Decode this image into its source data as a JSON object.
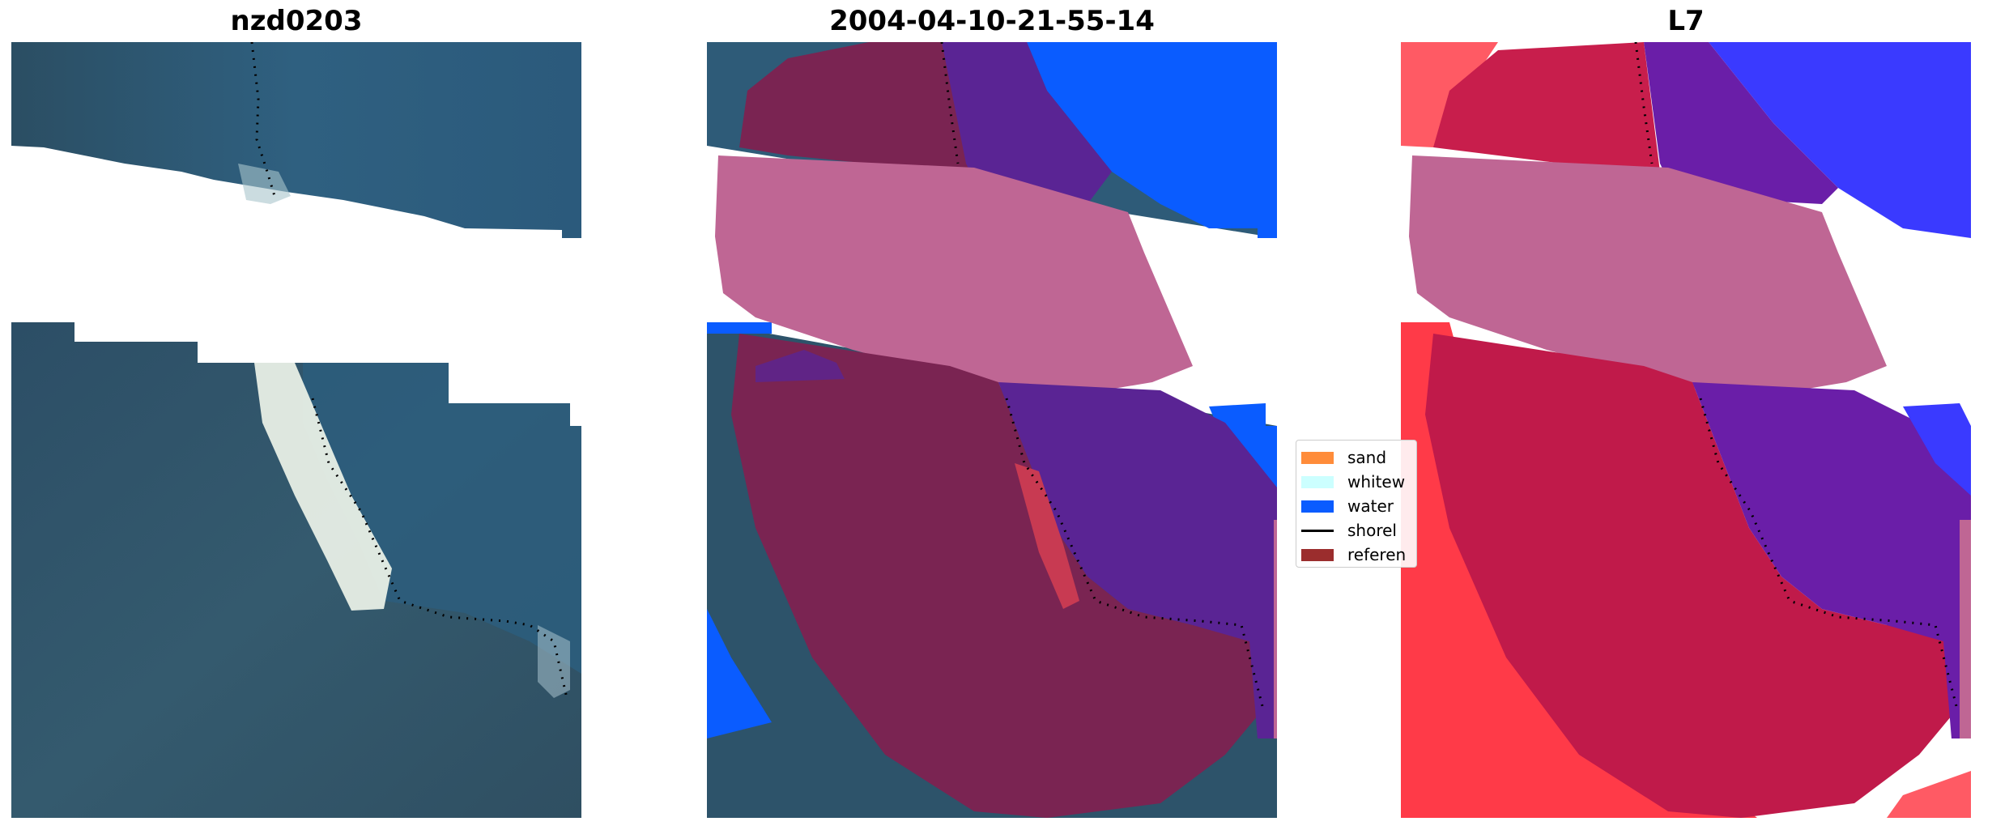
{
  "panels": [
    {
      "title": "nzd0203"
    },
    {
      "title": "2004-04-10-21-55-14"
    },
    {
      "title": "L7"
    }
  ],
  "legend": {
    "items": [
      {
        "label": "sand",
        "color": "#ff8c3a"
      },
      {
        "label": "whitew",
        "color": "#ccffff"
      },
      {
        "label": "water",
        "color": "#0a5cff"
      },
      {
        "label": "shorel",
        "color": "#000000"
      },
      {
        "label": "referen",
        "color": "#9b2d2d"
      }
    ]
  },
  "colors": {
    "ocean": "#2f5f7a",
    "sea_deep": "#2a4f68",
    "surf": "#e9f0ea",
    "class_water": "#0a5cff",
    "class_pink": "#bf6694",
    "class_maroon": "#7a2452",
    "class_purple": "#5a2494",
    "class_red": "#c83a52",
    "l7_red": "#ff3a48",
    "l7_blue": "#3a3aff",
    "l7_magenta": "#c01a4a"
  }
}
